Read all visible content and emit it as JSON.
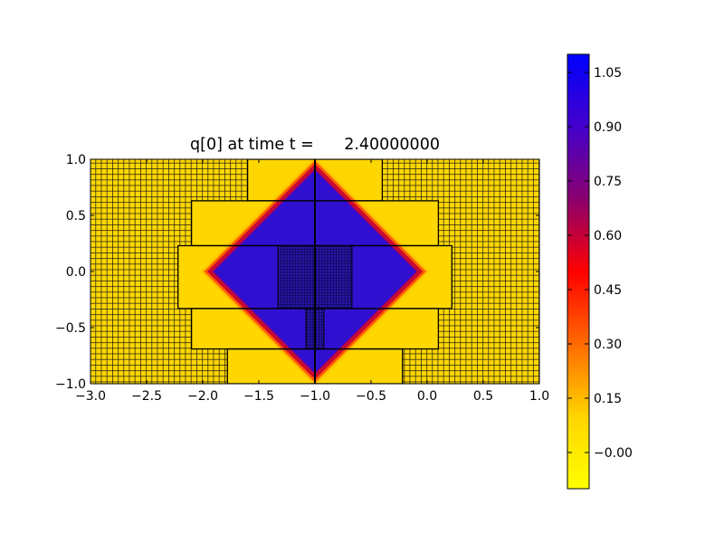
{
  "chart_data": [
    {
      "type": "heatmap",
      "title": "q[0] at time t =      2.40000000",
      "xlabel": "",
      "ylabel": "",
      "xlim": [
        -3.0,
        1.0
      ],
      "ylim": [
        -1.0,
        1.0
      ],
      "x_ticks": [
        "−3.0",
        "−2.5",
        "−2.0",
        "−1.5",
        "−1.0",
        "−0.5",
        "0.0",
        "0.5",
        "1.0"
      ],
      "x_tick_values": [
        -3.0,
        -2.5,
        -2.0,
        -1.5,
        -1.0,
        -0.5,
        0.0,
        0.5,
        1.0
      ],
      "y_ticks": [
        "1.0",
        "0.5",
        "0.0",
        "−0.5",
        "−1.0"
      ],
      "y_tick_values": [
        1.0,
        0.5,
        0.0,
        -0.5,
        -1.0
      ],
      "field": {
        "shape": "diamond",
        "center": [
          -1.0,
          0.0
        ],
        "outer_half_width_x": 1.02,
        "inner_half_width_x": 0.9,
        "background_value": 0.0,
        "peak_value": 1.0
      },
      "grid_patches": [
        {
          "x0": -1.6,
          "x1": -0.4,
          "y0": 0.63,
          "y1": 1.0
        },
        {
          "x0": -2.1,
          "x1": 0.1,
          "y0": 0.23,
          "y1": 0.63
        },
        {
          "x0": -2.22,
          "x1": 0.22,
          "y0": -0.33,
          "y1": 0.23
        },
        {
          "x0": -2.1,
          "x1": 0.1,
          "y0": -0.69,
          "y1": -0.33
        },
        {
          "x0": -1.78,
          "x1": -0.22,
          "y0": -1.0,
          "y1": -0.69
        }
      ],
      "fine_patches": [
        {
          "x0": -1.33,
          "x1": -0.67,
          "y0": -0.33,
          "y1": 0.23
        },
        {
          "x0": -1.08,
          "x1": -0.92,
          "y0": -0.69,
          "y1": -0.33
        }
      ],
      "center_line_x": -1.0,
      "coarse_grid_spacing": 0.05,
      "fine_grid_spacing": 0.0125
    },
    {
      "type": "colorbar",
      "range": [
        -0.1,
        1.1
      ],
      "tick_values": [
        0.0,
        0.15,
        0.3,
        0.45,
        0.6,
        0.75,
        0.9,
        1.05
      ],
      "tick_labels": [
        "−0.00",
        "0.15",
        "0.30",
        "0.45",
        "0.60",
        "0.75",
        "0.90",
        "1.05"
      ],
      "colormap": [
        "#ffff00",
        "#ffd500",
        "#ff6a00",
        "#ff0000",
        "#8b006e",
        "#4400cc",
        "#0000ff"
      ]
    }
  ]
}
